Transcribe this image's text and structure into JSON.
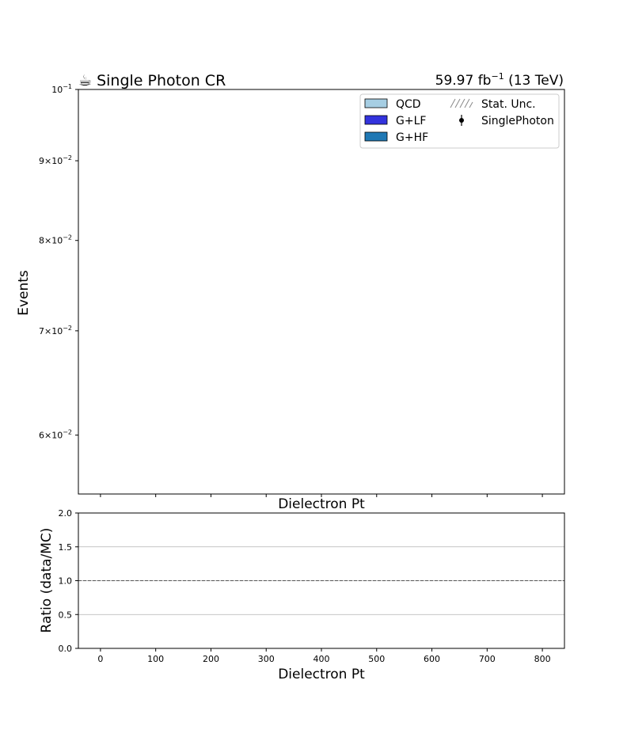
{
  "chart_data": [
    {
      "type": "bar",
      "stacked": true,
      "title_left": "☕ Single Photon CR",
      "title_right_prefix": "59.97 fb",
      "title_right_exp": "−1",
      "title_right_suffix": " (13 TeV)",
      "xlabel": "Dielectron Pt",
      "ylabel": "Events",
      "yscale": "log",
      "ylim": [
        0.055,
        0.1
      ],
      "yticks": [
        {
          "value": 0.1,
          "mantissa": "",
          "exp": "−1"
        },
        {
          "value": 0.09,
          "mantissa": "9",
          "exp": "−2"
        },
        {
          "value": 0.08,
          "mantissa": "8",
          "exp": "−2"
        },
        {
          "value": 0.07,
          "mantissa": "7",
          "exp": "−2"
        },
        {
          "value": 0.06,
          "mantissa": "6",
          "exp": "−2"
        }
      ],
      "xlim": [
        -40,
        840
      ],
      "xticks": [
        0,
        100,
        200,
        300,
        400,
        500,
        600,
        700,
        800
      ],
      "show_xtick_labels": false,
      "legend": {
        "position": "top-right",
        "entries": [
          {
            "label": "QCD",
            "kind": "patch",
            "color": "#a6cee3"
          },
          {
            "label": "Stat. Unc.",
            "kind": "hatch",
            "color": "#888888"
          },
          {
            "label": "G+LF",
            "kind": "patch",
            "color": "#3333dd"
          },
          {
            "label": "SinglePhoton",
            "kind": "errorbar",
            "color": "#000000"
          },
          {
            "label": "G+HF",
            "kind": "patch",
            "color": "#1f78b4"
          }
        ]
      },
      "series": []
    },
    {
      "type": "scatter",
      "xlabel": "Dielectron Pt",
      "ylabel": "Ratio (data/MC)",
      "ylim": [
        0.0,
        2.0
      ],
      "yticks": [
        "0.0",
        "0.5",
        "1.0",
        "1.5",
        "2.0"
      ],
      "xlim": [
        -40,
        840
      ],
      "xticks": [
        "0",
        "100",
        "200",
        "300",
        "400",
        "500",
        "600",
        "700",
        "800"
      ],
      "grid": true,
      "reference_line": 1.0,
      "series": []
    }
  ]
}
